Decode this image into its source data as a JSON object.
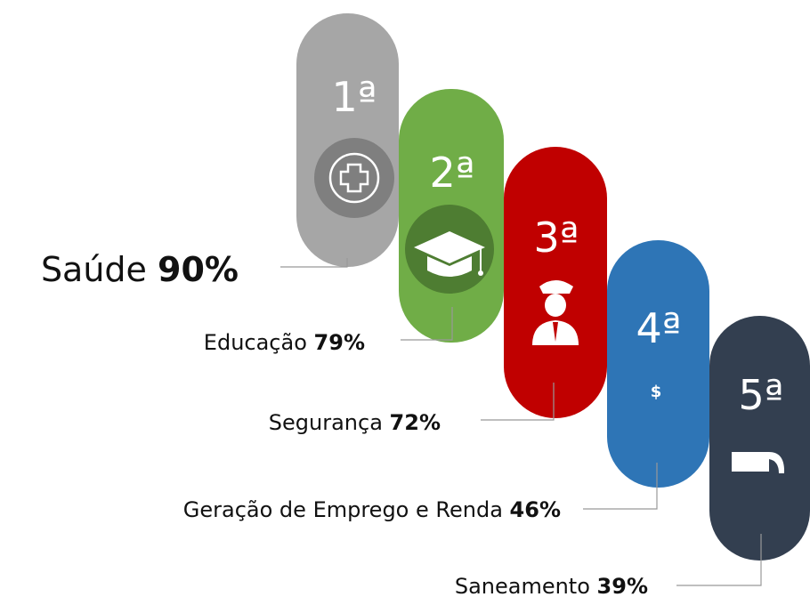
{
  "items": [
    {
      "rank": "1ª",
      "label": "Saúde",
      "value": "90%"
    },
    {
      "rank": "2ª",
      "label": "Educação",
      "value": "79%"
    },
    {
      "rank": "3ª",
      "label": "Segurança",
      "value": "72%"
    },
    {
      "rank": "4ª",
      "label": "Geração de Emprego e Renda",
      "value": "46%"
    },
    {
      "rank": "5ª",
      "label": "Saneamento",
      "value": "39%"
    }
  ]
}
